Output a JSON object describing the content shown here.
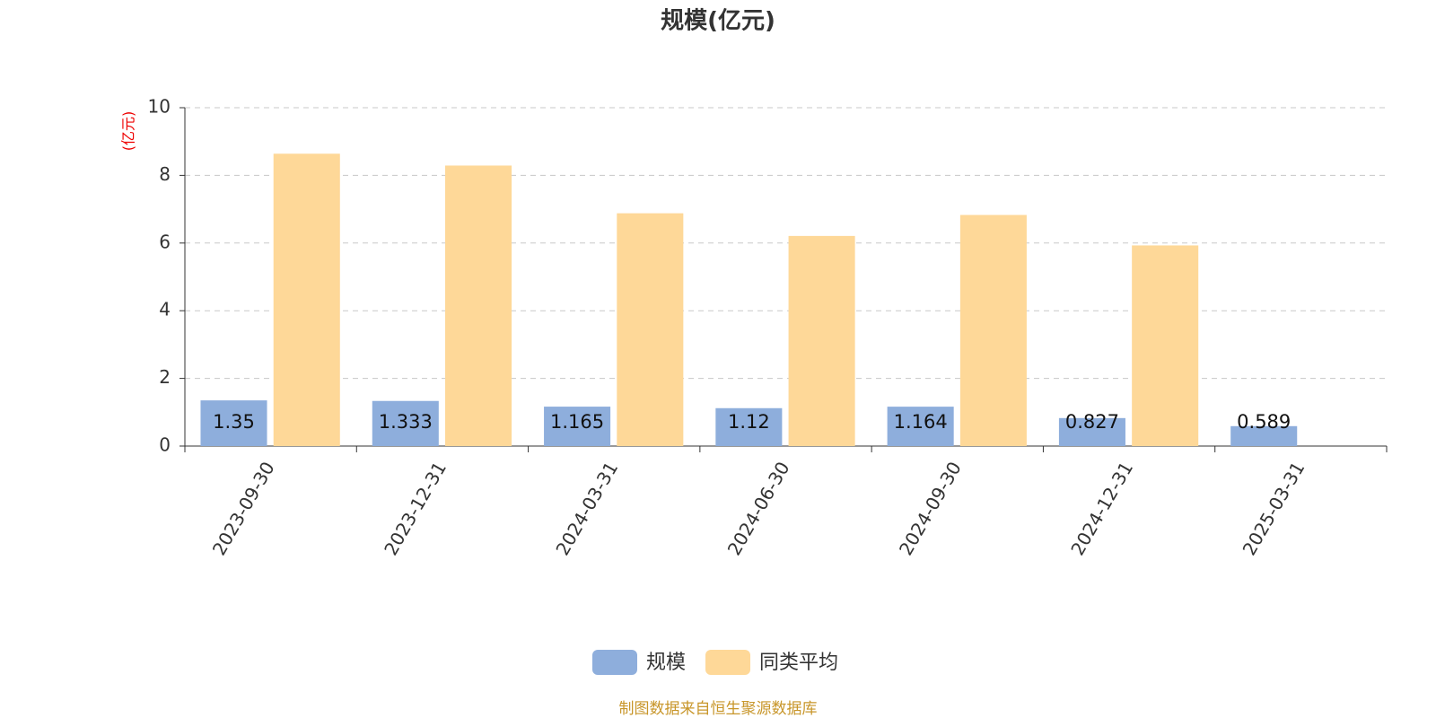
{
  "chart_data": {
    "type": "bar",
    "title": "规模(亿元)",
    "y_label": "(亿元)",
    "categories": [
      "2023-09-30",
      "2023-12-31",
      "2024-03-31",
      "2024-06-30",
      "2024-09-30",
      "2024-12-31",
      "2025-03-31"
    ],
    "series": [
      {
        "name": "规模",
        "color": "#8eaedc",
        "values": [
          1.35,
          1.333,
          1.165,
          1.12,
          1.164,
          0.827,
          0.589
        ]
      },
      {
        "name": "同类平均",
        "color": "#fed898",
        "values": [
          8.64,
          8.29,
          6.88,
          6.21,
          6.83,
          5.93,
          null
        ]
      }
    ],
    "ylim": [
      0,
      10
    ],
    "yticks": [
      0,
      2,
      4,
      6,
      8,
      10
    ],
    "grid": true,
    "source": "制图数据来自恒生聚源数据库"
  }
}
